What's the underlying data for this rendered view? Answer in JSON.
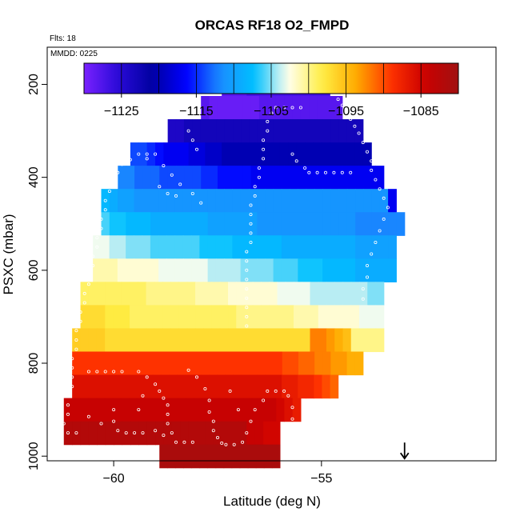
{
  "chart_data": {
    "type": "heatmap",
    "title": "ORCAS RF18 O2_FMPD",
    "flights_label": "Flts: 18",
    "date_label": "MMDD: 0225",
    "xlabel": "Latitude (deg N)",
    "ylabel": "PSXC (mbar)",
    "xlim": [
      -61.6,
      -50.8
    ],
    "ylim": [
      1010,
      120
    ],
    "y_reversed": true,
    "xticks": [
      -60,
      -55
    ],
    "yticks": [
      200,
      400,
      600,
      800,
      1000
    ],
    "colorbar": {
      "range": [
        -1130,
        -1080
      ],
      "ticks": [
        -1125,
        -1115,
        -1105,
        -1095,
        -1085
      ],
      "stops": [
        "#7a22ff",
        "#2a0ad8",
        "#0000a0",
        "#0000ff",
        "#1a8cff",
        "#00c0ff",
        "#ffffee",
        "#ffee44",
        "#ffaa00",
        "#ff3300",
        "#cc0000",
        "#a01010"
      ]
    },
    "rows": [
      {
        "p": 200,
        "x0": -57.4,
        "x1": -54.8,
        "v": [
          -1128,
          -1128,
          -1128,
          -1127,
          -1127,
          -1127,
          -1127,
          -1127,
          -1127,
          -1127,
          -1127,
          -1127,
          -1127
        ]
      },
      {
        "p": 250,
        "x0": -57.9,
        "x1": -54.5,
        "v": [
          -1128,
          -1129,
          -1129,
          -1129,
          -1129,
          -1129,
          -1129,
          -1128,
          -1128,
          -1128,
          -1128,
          -1128,
          -1128,
          -1128,
          -1128,
          -1128,
          -1128
        ]
      },
      {
        "p": 300,
        "x0": -58.7,
        "x1": -54.0,
        "v": [
          -1124,
          -1124,
          -1123,
          -1123,
          -1123,
          -1123,
          -1123,
          -1123,
          -1123,
          -1123,
          -1123,
          -1123,
          -1123,
          -1123,
          -1123,
          -1123,
          -1123,
          -1123,
          -1123,
          -1123,
          -1123,
          -1123,
          -1123,
          -1123
        ]
      },
      {
        "p": 350,
        "x0": -59.6,
        "x1": -53.8,
        "v": [
          -1114,
          -1114,
          -1115,
          -1116,
          -1117,
          -1117,
          -1117,
          -1118,
          -1118,
          -1119,
          -1119,
          -1120,
          -1120,
          -1120,
          -1120,
          -1120,
          -1120,
          -1120,
          -1120,
          -1120,
          -1120,
          -1120,
          -1120,
          -1120,
          -1120,
          -1120,
          -1120,
          -1120,
          -1120
        ]
      },
      {
        "p": 400,
        "x0": -59.9,
        "x1": -53.5,
        "v": [
          -1112,
          -1112,
          -1113,
          -1113,
          -1113,
          -1114,
          -1114,
          -1114,
          -1114,
          -1114,
          -1115,
          -1115,
          -1116,
          -1116,
          -1116,
          -1116,
          -1117,
          -1117,
          -1117,
          -1117,
          -1117,
          -1117,
          -1117,
          -1117,
          -1117,
          -1117,
          -1117,
          -1117,
          -1117,
          -1117,
          -1117,
          -1117
        ]
      },
      {
        "p": 450,
        "x0": -60.3,
        "x1": -53.2,
        "v": [
          -1108,
          -1109,
          -1110,
          -1110,
          -1111,
          -1111,
          -1111,
          -1111,
          -1111,
          -1111,
          -1111,
          -1111,
          -1111,
          -1111,
          -1111,
          -1111,
          -1111,
          -1111,
          -1111,
          -1111,
          -1111,
          -1111,
          -1111,
          -1111,
          -1111,
          -1111,
          -1111,
          -1111,
          -1111,
          -1111,
          -1111,
          -1111,
          -1111,
          -1111,
          -1111,
          -1117
        ]
      },
      {
        "p": 500,
        "x0": -60.3,
        "x1": -53.0,
        "v": [
          -1106,
          -1107,
          -1107,
          -1108,
          -1108,
          -1108,
          -1109,
          -1109,
          -1109,
          -1109,
          -1109,
          -1109,
          -1109,
          -1110,
          -1110,
          -1110,
          -1110,
          -1110,
          -1110,
          -1111,
          -1111,
          -1111,
          -1111,
          -1111,
          -1111,
          -1111,
          -1111,
          -1111,
          -1111,
          -1111,
          -1111,
          -1112,
          -1112,
          -1112,
          -1112,
          -1112,
          -1112
        ]
      },
      {
        "p": 550,
        "x0": -60.5,
        "x1": -53.2,
        "v": [
          -1103,
          -1103,
          -1104,
          -1104,
          -1105,
          -1105,
          -1105,
          -1106,
          -1106,
          -1106,
          -1106,
          -1106,
          -1106,
          -1107,
          -1107,
          -1107,
          -1107,
          -1108,
          -1108,
          -1108,
          -1108,
          -1108,
          -1108,
          -1109,
          -1109,
          -1109,
          -1109,
          -1109,
          -1109,
          -1109,
          -1109,
          -1109,
          -1110,
          -1110,
          -1110,
          -1110,
          -1110
        ]
      },
      {
        "p": 600,
        "x0": -60.5,
        "x1": -53.2,
        "v": [
          -1101,
          -1101,
          -1101,
          -1102,
          -1102,
          -1102,
          -1102,
          -1102,
          -1103,
          -1103,
          -1103,
          -1103,
          -1103,
          -1103,
          -1104,
          -1104,
          -1104,
          -1104,
          -1105,
          -1105,
          -1105,
          -1105,
          -1106,
          -1106,
          -1106,
          -1107,
          -1107,
          -1107,
          -1108,
          -1108,
          -1108,
          -1108,
          -1109,
          -1109,
          -1109,
          -1109,
          -1109
        ]
      },
      {
        "p": 650,
        "x0": -60.8,
        "x1": -53.5,
        "v": [
          -1099,
          -1099,
          -1099,
          -1099,
          -1099,
          -1099,
          -1099,
          -1099,
          -1100,
          -1100,
          -1100,
          -1100,
          -1100,
          -1100,
          -1101,
          -1101,
          -1101,
          -1101,
          -1102,
          -1102,
          -1102,
          -1102,
          -1102,
          -1102,
          -1103,
          -1103,
          -1103,
          -1103,
          -1104,
          -1104,
          -1104,
          -1104,
          -1104,
          -1104,
          -1104,
          -1105,
          -1105
        ]
      },
      {
        "p": 700,
        "x0": -60.8,
        "x1": -53.5,
        "v": [
          -1097,
          -1097,
          -1097,
          -1098,
          -1098,
          -1098,
          -1099,
          -1099,
          -1099,
          -1099,
          -1099,
          -1099,
          -1099,
          -1099,
          -1099,
          -1099,
          -1099,
          -1099,
          -1099,
          -1100,
          -1100,
          -1100,
          -1100,
          -1100,
          -1100,
          -1100,
          -1101,
          -1101,
          -1101,
          -1102,
          -1102,
          -1102,
          -1102,
          -1102,
          -1103,
          -1103,
          -1103
        ]
      },
      {
        "p": 750,
        "x0": -61.0,
        "x1": -53.5,
        "v": [
          -1096,
          -1096,
          -1096,
          -1096,
          -1097,
          -1097,
          -1097,
          -1097,
          -1097,
          -1097,
          -1097,
          -1097,
          -1097,
          -1097,
          -1097,
          -1097,
          -1097,
          -1097,
          -1097,
          -1097,
          -1097,
          -1097,
          -1097,
          -1097,
          -1097,
          -1097,
          -1097,
          -1097,
          -1097,
          -1092,
          -1092,
          -1093,
          -1094,
          -1095,
          -1100,
          -1100,
          -1100,
          -1100
        ]
      },
      {
        "p": 800,
        "x0": -61.0,
        "x1": -54.0,
        "v": [
          -1089,
          -1089,
          -1089,
          -1089,
          -1089,
          -1089,
          -1089,
          -1089,
          -1089,
          -1089,
          -1089,
          -1089,
          -1089,
          -1089,
          -1089,
          -1089,
          -1089,
          -1089,
          -1089,
          -1089,
          -1089,
          -1089,
          -1089,
          -1089,
          -1089,
          -1089,
          -1090,
          -1090,
          -1091,
          -1091,
          -1092,
          -1092,
          -1093,
          -1093,
          -1094,
          -1094
        ]
      },
      {
        "p": 850,
        "x0": -61.0,
        "x1": -54.6,
        "v": [
          -1086,
          -1086,
          -1086,
          -1086,
          -1086,
          -1086,
          -1086,
          -1086,
          -1086,
          -1086,
          -1086,
          -1086,
          -1086,
          -1086,
          -1086,
          -1086,
          -1086,
          -1086,
          -1086,
          -1086,
          -1086,
          -1086,
          -1086,
          -1086,
          -1086,
          -1086,
          -1087,
          -1087,
          -1088,
          -1088,
          -1089,
          -1090,
          -1091
        ]
      },
      {
        "p": 900,
        "x0": -61.2,
        "x1": -55.5,
        "v": [
          -1084,
          -1084,
          -1084,
          -1084,
          -1084,
          -1084,
          -1084,
          -1084,
          -1084,
          -1084,
          -1084,
          -1084,
          -1084,
          -1084,
          -1084,
          -1084,
          -1084,
          -1084,
          -1084,
          -1084,
          -1084,
          -1084,
          -1084,
          -1084,
          -1084,
          -1084,
          -1085,
          -1086,
          -1087
        ]
      },
      {
        "p": 950,
        "x0": -61.2,
        "x1": -56.0,
        "v": [
          -1082,
          -1082,
          -1082,
          -1082,
          -1082,
          -1082,
          -1082,
          -1082,
          -1082,
          -1082,
          -1082,
          -1082,
          -1082,
          -1082,
          -1082,
          -1082,
          -1082,
          -1082,
          -1082,
          -1082,
          -1082,
          -1082,
          -1084,
          -1084,
          -1085,
          -1085
        ]
      },
      {
        "p": 1000,
        "x0": -58.9,
        "x1": -56.0,
        "v": [
          -1081,
          -1081,
          -1081,
          -1081,
          -1081,
          -1081,
          -1081,
          -1081,
          -1081,
          -1081,
          -1081,
          -1081,
          -1081,
          -1081,
          -1081
        ]
      }
    ],
    "flight_track": [
      [
        -57.4,
        182
      ],
      [
        -57.2,
        182
      ],
      [
        -57.0,
        182
      ],
      [
        -56.8,
        182
      ],
      [
        -56.6,
        182
      ],
      [
        -56.4,
        182
      ],
      [
        -56.2,
        182
      ],
      [
        -56.0,
        182
      ],
      [
        -55.8,
        182
      ],
      [
        -55.6,
        182
      ],
      [
        -55.4,
        182
      ],
      [
        -55.2,
        182
      ],
      [
        -55.0,
        185
      ],
      [
        -54.9,
        195
      ],
      [
        -54.8,
        205
      ],
      [
        -54.7,
        218
      ],
      [
        -54.6,
        232
      ],
      [
        -54.5,
        245
      ],
      [
        -54.4,
        260
      ],
      [
        -54.3,
        275
      ],
      [
        -54.2,
        290
      ],
      [
        -54.1,
        305
      ],
      [
        -54.0,
        325
      ],
      [
        -53.9,
        345
      ],
      [
        -53.8,
        365
      ],
      [
        -53.8,
        385
      ],
      [
        -53.7,
        405
      ],
      [
        -53.6,
        425
      ],
      [
        -53.5,
        445
      ],
      [
        -53.4,
        465
      ],
      [
        -53.5,
        490
      ],
      [
        -53.6,
        515
      ],
      [
        -53.7,
        540
      ],
      [
        -53.8,
        565
      ],
      [
        -53.9,
        590
      ],
      [
        -53.9,
        615
      ],
      [
        -54.0,
        640
      ],
      [
        -54.0,
        662
      ],
      [
        -56.1,
        250
      ],
      [
        -55.9,
        250
      ],
      [
        -55.7,
        250
      ],
      [
        -55.5,
        250
      ],
      [
        -56.2,
        262
      ],
      [
        -56.3,
        280
      ],
      [
        -56.3,
        300
      ],
      [
        -56.4,
        320
      ],
      [
        -56.4,
        340
      ],
      [
        -56.4,
        360
      ],
      [
        -56.5,
        380
      ],
      [
        -56.5,
        400
      ],
      [
        -56.6,
        420
      ],
      [
        -56.6,
        440
      ],
      [
        -56.7,
        460
      ],
      [
        -56.7,
        480
      ],
      [
        -56.7,
        500
      ],
      [
        -56.7,
        520
      ],
      [
        -56.7,
        540
      ],
      [
        -56.8,
        560
      ],
      [
        -56.8,
        580
      ],
      [
        -56.8,
        600
      ],
      [
        -56.8,
        620
      ],
      [
        -56.8,
        640
      ],
      [
        -56.8,
        660
      ],
      [
        -56.8,
        680
      ],
      [
        -56.8,
        700
      ],
      [
        -56.8,
        720
      ],
      [
        -55.3,
        390
      ],
      [
        -55.1,
        390
      ],
      [
        -54.9,
        390
      ],
      [
        -54.7,
        390
      ],
      [
        -54.5,
        390
      ],
      [
        -54.3,
        390
      ],
      [
        -55.4,
        380
      ],
      [
        -55.6,
        365
      ],
      [
        -55.7,
        350
      ],
      [
        -59.4,
        350
      ],
      [
        -59.2,
        350
      ],
      [
        -59.0,
        350
      ],
      [
        -59.2,
        360
      ],
      [
        -59.6,
        362
      ],
      [
        -59.8,
        372
      ],
      [
        -59.9,
        390
      ],
      [
        -60.0,
        410
      ],
      [
        -60.1,
        430
      ],
      [
        -60.2,
        450
      ],
      [
        -60.2,
        470
      ],
      [
        -60.3,
        490
      ],
      [
        -60.3,
        510
      ],
      [
        -60.4,
        530
      ],
      [
        -60.4,
        550
      ],
      [
        -60.5,
        570
      ],
      [
        -60.5,
        590
      ],
      [
        -60.6,
        610
      ],
      [
        -60.6,
        630
      ],
      [
        -60.7,
        650
      ],
      [
        -60.7,
        670
      ],
      [
        -60.8,
        690
      ],
      [
        -60.8,
        710
      ],
      [
        -60.9,
        730
      ],
      [
        -60.9,
        750
      ],
      [
        -60.9,
        770
      ],
      [
        -61.0,
        790
      ],
      [
        -61.0,
        810
      ],
      [
        -61.0,
        830
      ],
      [
        -61.0,
        850
      ],
      [
        -61.1,
        870
      ],
      [
        -61.1,
        890
      ],
      [
        -61.1,
        910
      ],
      [
        -61.2,
        930
      ],
      [
        -61.3,
        950
      ],
      [
        -61.1,
        950
      ],
      [
        -60.9,
        950
      ],
      [
        -58.2,
        300
      ],
      [
        -58.1,
        320
      ],
      [
        -58.0,
        340
      ],
      [
        -58.8,
        375
      ],
      [
        -58.6,
        395
      ],
      [
        -58.4,
        415
      ],
      [
        -58.1,
        435
      ],
      [
        -57.9,
        455
      ],
      [
        -58.9,
        420
      ],
      [
        -58.7,
        435
      ],
      [
        -58.5,
        440
      ],
      [
        -60.6,
        818
      ],
      [
        -60.4,
        818
      ],
      [
        -60.2,
        818
      ],
      [
        -60.0,
        818
      ],
      [
        -59.8,
        818
      ],
      [
        -59.4,
        818
      ],
      [
        -59.2,
        830
      ],
      [
        -59.0,
        845
      ],
      [
        -58.9,
        860
      ],
      [
        -58.8,
        875
      ],
      [
        -58.7,
        890
      ],
      [
        -58.7,
        910
      ],
      [
        -58.7,
        930
      ],
      [
        -58.6,
        950
      ],
      [
        -58.5,
        970
      ],
      [
        -58.3,
        970
      ],
      [
        -58.1,
        970
      ],
      [
        -60.0,
        900
      ],
      [
        -60.0,
        925
      ],
      [
        -59.9,
        945
      ],
      [
        -59.7,
        950
      ],
      [
        -59.5,
        950
      ],
      [
        -59.3,
        950
      ],
      [
        -60.3,
        930
      ],
      [
        -60.6,
        915
      ],
      [
        -58.2,
        815
      ],
      [
        -58.0,
        830
      ],
      [
        -57.8,
        855
      ],
      [
        -57.7,
        880
      ],
      [
        -57.7,
        905
      ],
      [
        -57.6,
        925
      ],
      [
        -57.6,
        945
      ],
      [
        -57.5,
        960
      ],
      [
        -57.4,
        972
      ],
      [
        -57.3,
        975
      ],
      [
        -57.1,
        975
      ],
      [
        -56.9,
        970
      ],
      [
        -56.8,
        950
      ],
      [
        -56.7,
        925
      ],
      [
        -56.6,
        900
      ],
      [
        -56.4,
        880
      ],
      [
        -56.3,
        860
      ],
      [
        -56.1,
        860
      ],
      [
        -55.9,
        860
      ],
      [
        -57.0,
        900
      ],
      [
        -57.2,
        860
      ],
      [
        -55.8,
        870
      ],
      [
        -55.7,
        895
      ],
      [
        -55.7,
        920
      ],
      [
        -55.7,
        945
      ],
      [
        -55.8,
        965
      ],
      [
        -55.7,
        975
      ],
      [
        -59.0,
        945
      ],
      [
        -58.8,
        955
      ],
      [
        -59.4,
        900
      ],
      [
        -59.3,
        870
      ]
    ],
    "aircraft_marker": {
      "lat": -53.0,
      "p": 1000
    }
  }
}
